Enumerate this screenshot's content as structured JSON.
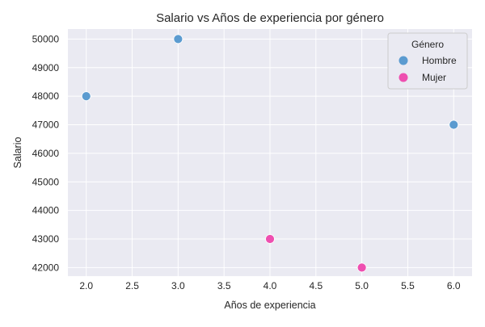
{
  "chart_data": {
    "type": "scatter",
    "title": "Salario vs Años de experiencia por género",
    "xlabel": "Años de experiencia",
    "ylabel": "Salario",
    "xlim": [
      1.8,
      6.2
    ],
    "ylim": [
      41700,
      50350
    ],
    "xticks": [
      "2.0",
      "2.5",
      "3.0",
      "3.5",
      "4.0",
      "4.5",
      "5.0",
      "5.5",
      "6.0"
    ],
    "yticks": [
      "42000",
      "43000",
      "44000",
      "45000",
      "46000",
      "47000",
      "48000",
      "49000",
      "50000"
    ],
    "grid": true,
    "legend": {
      "title": "Género",
      "placement": "top-right"
    },
    "series": [
      {
        "name": "Hombre",
        "color": "#5b9bd0",
        "points": [
          {
            "x": 2,
            "y": 48000
          },
          {
            "x": 3,
            "y": 50000
          },
          {
            "x": 6,
            "y": 47000
          }
        ]
      },
      {
        "name": "Mujer",
        "color": "#ee4fb0",
        "points": [
          {
            "x": 4,
            "y": 43000
          },
          {
            "x": 5,
            "y": 42000
          }
        ]
      }
    ]
  }
}
